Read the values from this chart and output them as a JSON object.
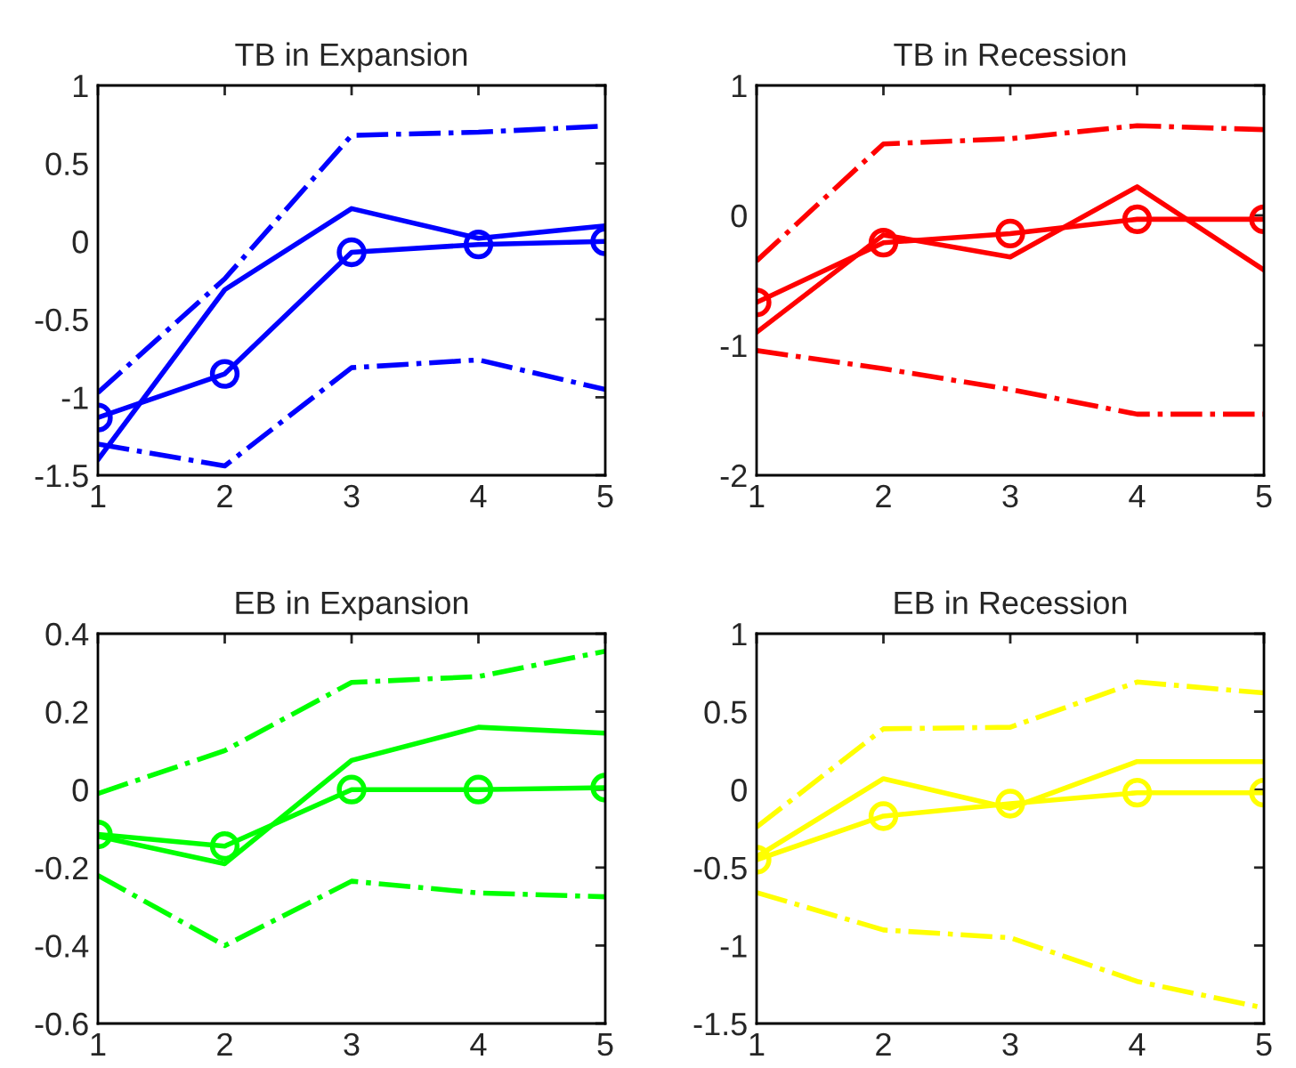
{
  "chart_data": [
    {
      "type": "line",
      "title": "TB in Expansion",
      "x": [
        1,
        2,
        3,
        4,
        5
      ],
      "xlim": [
        1,
        5
      ],
      "xticks": [
        1,
        2,
        3,
        4,
        5
      ],
      "ylim": [
        -1.5,
        1
      ],
      "yticks": [
        -1.5,
        -1,
        -0.5,
        0,
        0.5,
        1
      ],
      "grid": false,
      "legend": false,
      "series": [
        {
          "color": "#0000ff",
          "line_style": "dashdot",
          "marker": "none",
          "values": [
            -0.97,
            -0.24,
            0.68,
            0.7,
            0.74
          ]
        },
        {
          "color": "#0000ff",
          "line_style": "dashdot",
          "marker": "none",
          "values": [
            -1.3,
            -1.44,
            -0.81,
            -0.76,
            -0.95
          ]
        },
        {
          "color": "#0000ff",
          "line_style": "solid",
          "marker": "none",
          "values": [
            -1.4,
            -0.31,
            0.21,
            0.02,
            0.1
          ]
        },
        {
          "color": "#0000ff",
          "line_style": "solid",
          "marker": "circle",
          "values": [
            -1.13,
            -0.85,
            -0.07,
            -0.02,
            0.0
          ]
        }
      ]
    },
    {
      "type": "line",
      "title": "TB in Recession",
      "x": [
        1,
        2,
        3,
        4,
        5
      ],
      "xlim": [
        1,
        5
      ],
      "xticks": [
        1,
        2,
        3,
        4,
        5
      ],
      "ylim": [
        -2,
        1
      ],
      "yticks": [
        -2,
        -1,
        0,
        1
      ],
      "grid": false,
      "legend": false,
      "series": [
        {
          "color": "#ff0000",
          "line_style": "dashdot",
          "marker": "none",
          "values": [
            -0.35,
            0.55,
            0.59,
            0.69,
            0.66
          ]
        },
        {
          "color": "#ff0000",
          "line_style": "dashdot",
          "marker": "none",
          "values": [
            -1.04,
            -1.18,
            -1.34,
            -1.53,
            -1.53
          ]
        },
        {
          "color": "#ff0000",
          "line_style": "solid",
          "marker": "none",
          "values": [
            -0.9,
            -0.15,
            -0.32,
            0.22,
            -0.42
          ]
        },
        {
          "color": "#ff0000",
          "line_style": "solid",
          "marker": "circle",
          "values": [
            -0.67,
            -0.21,
            -0.14,
            -0.03,
            -0.03
          ]
        }
      ]
    },
    {
      "type": "line",
      "title": "EB in Expansion",
      "x": [
        1,
        2,
        3,
        4,
        5
      ],
      "xlim": [
        1,
        5
      ],
      "xticks": [
        1,
        2,
        3,
        4,
        5
      ],
      "ylim": [
        -0.6,
        0.4
      ],
      "yticks": [
        -0.6,
        -0.4,
        -0.2,
        0,
        0.2,
        0.4
      ],
      "grid": false,
      "legend": false,
      "series": [
        {
          "color": "#00ff00",
          "line_style": "dashdot",
          "marker": "none",
          "values": [
            -0.01,
            0.1,
            0.275,
            0.29,
            0.355
          ]
        },
        {
          "color": "#00ff00",
          "line_style": "dashdot",
          "marker": "none",
          "values": [
            -0.22,
            -0.4,
            -0.235,
            -0.265,
            -0.275
          ]
        },
        {
          "color": "#00ff00",
          "line_style": "solid",
          "marker": "none",
          "values": [
            -0.12,
            -0.19,
            0.075,
            0.16,
            0.145
          ]
        },
        {
          "color": "#00ff00",
          "line_style": "solid",
          "marker": "circle",
          "values": [
            -0.115,
            -0.145,
            0.0,
            0.0,
            0.005
          ]
        }
      ]
    },
    {
      "type": "line",
      "title": "EB in Recession",
      "x": [
        1,
        2,
        3,
        4,
        5
      ],
      "xlim": [
        1,
        5
      ],
      "xticks": [
        1,
        2,
        3,
        4,
        5
      ],
      "ylim": [
        -1.5,
        1
      ],
      "yticks": [
        -1.5,
        -1,
        -0.5,
        0,
        0.5,
        1
      ],
      "grid": false,
      "legend": false,
      "series": [
        {
          "color": "#ffff00",
          "line_style": "dashdot",
          "marker": "none",
          "values": [
            -0.24,
            0.39,
            0.4,
            0.69,
            0.62
          ]
        },
        {
          "color": "#ffff00",
          "line_style": "dashdot",
          "marker": "none",
          "values": [
            -0.66,
            -0.9,
            -0.95,
            -1.23,
            -1.4
          ]
        },
        {
          "color": "#ffff00",
          "line_style": "solid",
          "marker": "none",
          "values": [
            -0.43,
            0.07,
            -0.12,
            0.18,
            0.18
          ]
        },
        {
          "color": "#ffff00",
          "line_style": "solid",
          "marker": "circle",
          "values": [
            -0.45,
            -0.17,
            -0.09,
            -0.02,
            -0.02
          ]
        }
      ]
    }
  ]
}
